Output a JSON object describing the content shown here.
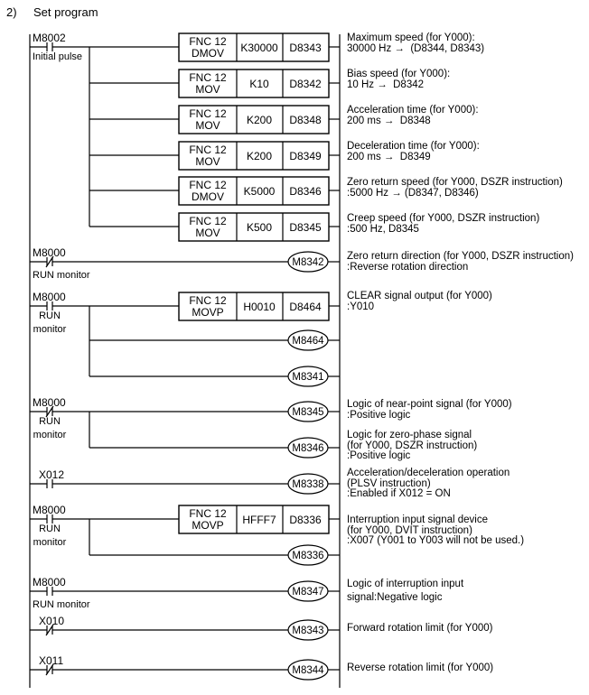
{
  "section": {
    "number": "2)",
    "title": "Set program"
  },
  "rungs": [
    {
      "contact": {
        "device": "M8002",
        "type": "NO",
        "comment": [
          "Initial pulse"
        ]
      },
      "outputs": [
        {
          "kind": "box",
          "fnc": "FNC 12",
          "op": "DMOV",
          "s": "K30000",
          "d": "D8343"
        },
        {
          "kind": "box",
          "fnc": "FNC 12",
          "op": "MOV",
          "s": "K10",
          "d": "D8342"
        },
        {
          "kind": "box",
          "fnc": "FNC 12",
          "op": "MOV",
          "s": "K200",
          "d": "D8348"
        },
        {
          "kind": "box",
          "fnc": "FNC 12",
          "op": "MOV",
          "s": "K200",
          "d": "D8349"
        },
        {
          "kind": "box",
          "fnc": "FNC 12",
          "op": "DMOV",
          "s": "K5000",
          "d": "D8346"
        },
        {
          "kind": "box",
          "fnc": "FNC 12",
          "op": "MOV",
          "s": "K500",
          "d": "D8345"
        }
      ]
    },
    {
      "contact": {
        "device": "M8000",
        "type": "NC",
        "comment": [
          "RUN monitor"
        ]
      },
      "outputs": [
        {
          "kind": "coil",
          "device": "M8342"
        }
      ]
    },
    {
      "contact": {
        "device": "M8000",
        "type": "NO",
        "comment": [
          "RUN",
          "monitor"
        ]
      },
      "outputs": [
        {
          "kind": "box",
          "fnc": "FNC 12",
          "op": "MOVP",
          "s": "H0010",
          "d": "D8464"
        },
        {
          "kind": "coil",
          "device": "M8464"
        },
        {
          "kind": "coil",
          "device": "M8341"
        }
      ]
    },
    {
      "contact": {
        "device": "M8000",
        "type": "NC",
        "comment": [
          "RUN",
          "monitor"
        ]
      },
      "outputs": [
        {
          "kind": "coil",
          "device": "M8345"
        },
        {
          "kind": "coil",
          "device": "M8346"
        }
      ]
    },
    {
      "contact": {
        "device": "X012",
        "type": "NO",
        "comment": []
      },
      "outputs": [
        {
          "kind": "coil",
          "device": "M8338"
        }
      ]
    },
    {
      "contact": {
        "device": "M8000",
        "type": "NO",
        "comment": [
          "RUN",
          "monitor"
        ]
      },
      "outputs": [
        {
          "kind": "box",
          "fnc": "FNC 12",
          "op": "MOVP",
          "s": "HFFF7",
          "d": "D8336"
        },
        {
          "kind": "coil",
          "device": "M8336"
        }
      ]
    },
    {
      "contact": {
        "device": "M8000",
        "type": "NO",
        "comment": [
          "RUN monitor"
        ]
      },
      "outputs": [
        {
          "kind": "coil",
          "device": "M8347"
        }
      ]
    },
    {
      "contact": {
        "device": "X010",
        "type": "NC",
        "comment": []
      },
      "outputs": [
        {
          "kind": "coil",
          "device": "M8343"
        }
      ]
    },
    {
      "contact": {
        "device": "X011",
        "type": "NC",
        "comment": []
      },
      "outputs": [
        {
          "kind": "coil",
          "device": "M8344"
        }
      ]
    }
  ],
  "descriptions": [
    "Maximum speed (for Y000):\n30000 Hz →  (D8344, D8343)",
    "Bias speed (for Y000):\n10 Hz →  D8342",
    "Acceleration time (for Y000):\n200 ms →  D8348",
    "Deceleration time (for Y000):\n200 ms →  D8349",
    "Zero return speed (for Y000, DSZR instruction)\n:5000 Hz → (D8347, D8346)",
    "Creep speed (for Y000, DSZR instruction)\n:500 Hz, D8345",
    "Zero return direction (for Y000, DSZR instruction)\n:Reverse rotation direction",
    "CLEAR signal output (for Y000)\n:Y010",
    "Logic of near-point signal (for Y000)\n:Positive logic",
    "Logic for zero-phase signal\n(for Y000, DSZR instruction)\n:Positive logic",
    "Acceleration/deceleration operation\n(PLSV instruction)\n:Enabled if X012 = ON",
    "Interruption input signal device\n(for Y000, DVIT instruction)\n:X007 (Y001 to Y003 will not be used.)",
    "Logic of interruption input\n\nsignal:Negative logic",
    "Forward rotation limit (for Y000)",
    "Reverse rotation limit (for Y000)"
  ]
}
